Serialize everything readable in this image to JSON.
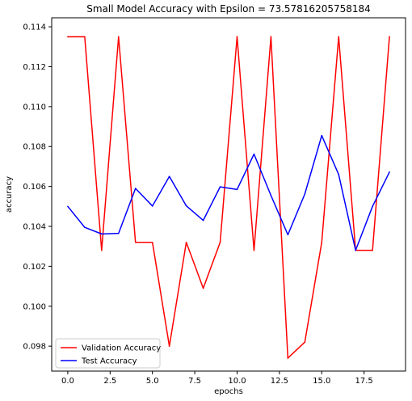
{
  "chart_data": {
    "type": "line",
    "title": "Small Model Accuracy with Epsilon = 73.57816205758184",
    "xlabel": "epochs",
    "ylabel": "accuracy",
    "xlim": [
      -0.95,
      19.95
    ],
    "ylim": [
      0.09675,
      0.11445
    ],
    "x_ticks": [
      0,
      2.5,
      5,
      7.5,
      10,
      12.5,
      15,
      17.5
    ],
    "x_tick_labels": [
      "0.0",
      "2.5",
      "5.0",
      "7.5",
      "10.0",
      "12.5",
      "15.0",
      "17.5"
    ],
    "y_ticks": [
      0.098,
      0.1,
      0.102,
      0.104,
      0.106,
      0.108,
      0.11,
      0.112,
      0.114
    ],
    "y_tick_labels": [
      "0.098",
      "0.100",
      "0.102",
      "0.104",
      "0.106",
      "0.108",
      "0.110",
      "0.112",
      "0.114"
    ],
    "grid": false,
    "legend_position": "lower-left",
    "x": [
      0,
      1,
      2,
      3,
      4,
      5,
      6,
      7,
      8,
      9,
      10,
      11,
      12,
      13,
      14,
      15,
      16,
      17,
      18,
      19
    ],
    "series": [
      {
        "name": "Validation Accuracy",
        "color": "#ff0000",
        "values": [
          0.1135,
          0.1135,
          0.1028,
          0.1135,
          0.1032,
          0.1032,
          0.098,
          0.1032,
          0.1009,
          0.1032,
          0.1135,
          0.1028,
          0.1135,
          0.0974,
          0.0982,
          0.1032,
          0.1135,
          0.1028,
          0.1028,
          0.1135
        ]
      },
      {
        "name": "Test Accuracy",
        "color": "#0000ff",
        "values": [
          0.105,
          0.10395,
          0.10362,
          0.10365,
          0.1059,
          0.10502,
          0.1065,
          0.10503,
          0.1043,
          0.10598,
          0.10585,
          0.10762,
          0.10555,
          0.10358,
          0.10562,
          0.10855,
          0.1066,
          0.1028,
          0.105,
          0.10672
        ]
      }
    ]
  }
}
